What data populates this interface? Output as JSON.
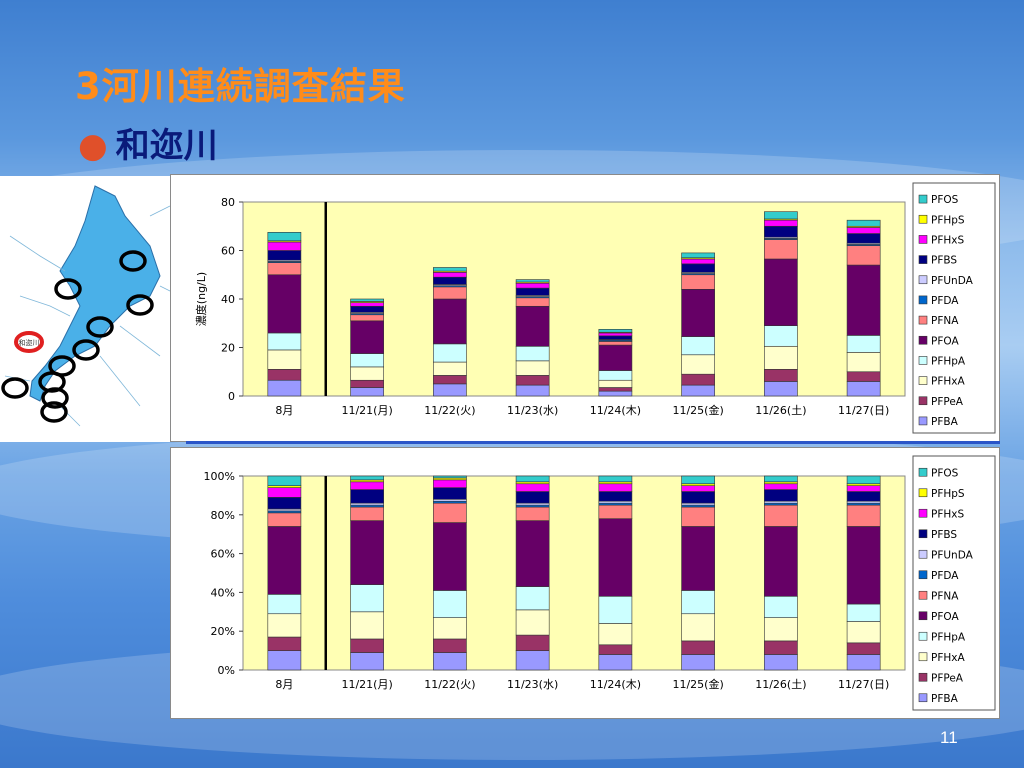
{
  "title": "3河川連続調査結果",
  "bullet": "和迩川",
  "page_number": "11",
  "colors": {
    "title": "#ff8c1a",
    "bullet_text": "#0a1a7a",
    "bullet_dot": "#e0502a",
    "plot_bg": "#ffffb4"
  },
  "map": {
    "description_icon": "lake-biwa-map",
    "highlighted_label": "和迩川"
  },
  "chart_data": [
    {
      "type": "bar",
      "stacked": true,
      "ylabel": "濃度(ng/L)",
      "ylim": [
        0,
        80
      ],
      "yticks": [
        "0",
        "20",
        "40",
        "60",
        "80"
      ],
      "categories": [
        "8月",
        "11/21(月)",
        "11/22(火)",
        "11/23(水)",
        "11/24(木)",
        "11/25(金)",
        "11/26(土)",
        "11/27(日)"
      ],
      "legend_position": "right",
      "series": [
        {
          "name": "PFBA",
          "color": "#9999ff",
          "values": [
            6.5,
            3.5,
            5.0,
            4.5,
            2.0,
            4.5,
            6.0,
            6.0
          ]
        },
        {
          "name": "PFPeA",
          "color": "#993366",
          "values": [
            4.5,
            3.0,
            3.5,
            4.0,
            1.5,
            4.5,
            5.0,
            4.0
          ]
        },
        {
          "name": "PFHxA",
          "color": "#ffffcc",
          "values": [
            8.0,
            5.5,
            5.5,
            6.0,
            3.0,
            8.0,
            9.5,
            8.0
          ]
        },
        {
          "name": "PFHpA",
          "color": "#ccffff",
          "values": [
            7.0,
            5.5,
            7.5,
            6.0,
            4.0,
            7.5,
            8.5,
            7.0
          ]
        },
        {
          "name": "PFOA",
          "color": "#660066",
          "values": [
            24.0,
            13.5,
            18.5,
            16.5,
            10.5,
            19.5,
            27.5,
            29.0
          ]
        },
        {
          "name": "PFNA",
          "color": "#ff8080",
          "values": [
            5.0,
            2.5,
            5.0,
            3.5,
            1.5,
            6.0,
            8.0,
            8.0
          ]
        },
        {
          "name": "PFDA",
          "color": "#0066cc",
          "values": [
            0.5,
            0.5,
            0.5,
            0.5,
            0.5,
            0.5,
            0.5,
            0.5
          ]
        },
        {
          "name": "PFUnDA",
          "color": "#ccccff",
          "values": [
            0.5,
            0.5,
            0.5,
            0.5,
            0.3,
            0.5,
            0.5,
            0.5
          ]
        },
        {
          "name": "PFBS",
          "color": "#000080",
          "values": [
            4.0,
            2.5,
            3.0,
            3.0,
            1.5,
            3.5,
            4.5,
            4.0
          ]
        },
        {
          "name": "PFHxS",
          "color": "#ff00ff",
          "values": [
            3.5,
            1.5,
            2.0,
            2.0,
            1.2,
            2.0,
            2.5,
            2.5
          ]
        },
        {
          "name": "PFHpS",
          "color": "#ffff00",
          "values": [
            0.5,
            0.5,
            0.5,
            0.5,
            0.3,
            0.5,
            0.5,
            0.5
          ]
        },
        {
          "name": "PFOS",
          "color": "#33cccc",
          "values": [
            3.5,
            1.0,
            1.5,
            1.0,
            1.2,
            2.0,
            3.0,
            2.5
          ]
        }
      ]
    },
    {
      "type": "bar",
      "stacked": true,
      "percent": true,
      "ylim": [
        0,
        100
      ],
      "yticks": [
        "0%",
        "20%",
        "40%",
        "60%",
        "80%",
        "100%"
      ],
      "categories": [
        "8月",
        "11/21(月)",
        "11/22(火)",
        "11/23(水)",
        "11/24(木)",
        "11/25(金)",
        "11/26(土)",
        "11/27(日)"
      ],
      "legend_position": "right",
      "series": [
        {
          "name": "PFBA",
          "color": "#9999ff",
          "values": [
            10,
            9,
            9,
            10,
            8,
            8,
            8,
            8
          ]
        },
        {
          "name": "PFPeA",
          "color": "#993366",
          "values": [
            7,
            7,
            7,
            8,
            5,
            7,
            7,
            6
          ]
        },
        {
          "name": "PFHxA",
          "color": "#ffffcc",
          "values": [
            12,
            14,
            11,
            13,
            11,
            14,
            12,
            11
          ]
        },
        {
          "name": "PFHpA",
          "color": "#ccffff",
          "values": [
            10,
            14,
            14,
            12,
            14,
            12,
            11,
            9
          ]
        },
        {
          "name": "PFOA",
          "color": "#660066",
          "values": [
            35,
            33,
            35,
            34,
            40,
            33,
            36,
            40
          ]
        },
        {
          "name": "PFNA",
          "color": "#ff8080",
          "values": [
            7,
            7,
            10,
            7,
            7,
            10,
            11,
            11
          ]
        },
        {
          "name": "PFDA",
          "color": "#0066cc",
          "values": [
            1,
            1,
            1,
            1,
            1,
            1,
            1,
            1
          ]
        },
        {
          "name": "PFUnDA",
          "color": "#ccccff",
          "values": [
            1,
            1,
            1,
            1,
            1,
            1,
            1,
            1
          ]
        },
        {
          "name": "PFBS",
          "color": "#000080",
          "values": [
            6,
            7,
            6,
            6,
            5,
            6,
            6,
            5
          ]
        },
        {
          "name": "PFHxS",
          "color": "#ff00ff",
          "values": [
            5,
            4,
            4,
            4,
            4,
            3,
            3,
            3
          ]
        },
        {
          "name": "PFHpS",
          "color": "#ffff00",
          "values": [
            1,
            1,
            1,
            1,
            1,
            1,
            1,
            1
          ]
        },
        {
          "name": "PFOS",
          "color": "#33cccc",
          "values": [
            5,
            2,
            1,
            3,
            3,
            4,
            3,
            4
          ]
        }
      ]
    }
  ]
}
